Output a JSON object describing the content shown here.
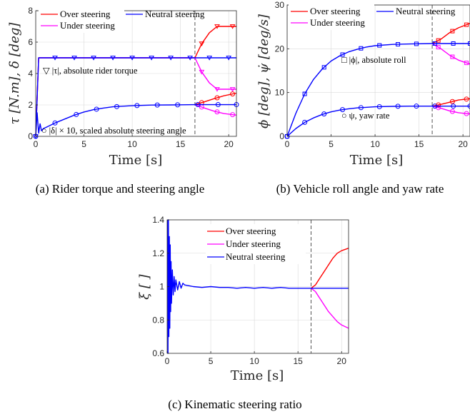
{
  "colors": {
    "over": "#ff0000",
    "under": "#ff00ff",
    "neutral": "#0000ff",
    "axis": "#262626",
    "grid": "#d9d9d9",
    "vline": "#555555"
  },
  "icons": [
    "triangle-down-marker",
    "circle-marker",
    "square-marker"
  ],
  "chart_data": [
    {
      "id": "a",
      "type": "line",
      "caption": "(a) Rider torque and steering angle",
      "xlabel": "Time [s]",
      "ylabel": "τ [N.m], δ [deg]",
      "xlim": [
        0,
        20.8
      ],
      "ylim": [
        0,
        8
      ],
      "xticks": [
        0,
        5,
        10,
        15,
        20
      ],
      "yticks": [
        0,
        2,
        4,
        6,
        8
      ],
      "grid": true,
      "legend_position": "top",
      "vline_x": 16.5,
      "annotations": [
        "▽ |τ|, absolute rider torque",
        "○ |δ| × 10, scaled absolute steering angle"
      ],
      "series": [
        {
          "name": "Over steering",
          "group": "torque",
          "x": [
            0,
            0.3,
            16.5,
            17.2,
            18.0,
            18.8,
            19.6,
            20.8
          ],
          "y": [
            0,
            5.0,
            5.0,
            5.9,
            6.6,
            7.0,
            7.0,
            7.0
          ]
        },
        {
          "name": "Under steering",
          "group": "torque",
          "x": [
            0,
            0.3,
            16.5,
            17.2,
            18.0,
            18.8,
            19.6,
            20.8
          ],
          "y": [
            0,
            5.0,
            5.0,
            4.1,
            3.4,
            3.0,
            3.0,
            3.0
          ]
        },
        {
          "name": "Neutral steering",
          "group": "torque",
          "x": [
            0,
            0.3,
            20.8
          ],
          "y": [
            0,
            5.0,
            5.0
          ]
        },
        {
          "name": "Over steering",
          "group": "angle",
          "x": [
            16.5,
            17.5,
            18.5,
            19.5,
            20.8
          ],
          "y": [
            2.02,
            2.2,
            2.4,
            2.58,
            2.75
          ]
        },
        {
          "name": "Under steering",
          "group": "angle",
          "x": [
            16.5,
            17.5,
            18.5,
            19.5,
            20.8
          ],
          "y": [
            2.02,
            1.8,
            1.6,
            1.45,
            1.35
          ]
        },
        {
          "name": "Neutral steering",
          "group": "angle",
          "x": [
            0,
            0.15,
            0.3,
            0.45,
            0.6,
            0.8,
            1,
            1.5,
            2,
            3,
            4,
            5,
            6,
            7,
            8,
            10,
            12,
            14,
            16.5,
            20.8
          ],
          "y": [
            0,
            1.5,
            0.2,
            0.8,
            0.35,
            0.5,
            0.55,
            0.7,
            0.85,
            1.1,
            1.35,
            1.55,
            1.7,
            1.8,
            1.88,
            1.95,
            1.99,
            2.0,
            2.02,
            2.02
          ]
        }
      ]
    },
    {
      "id": "b",
      "type": "line",
      "caption": "(b) Vehicle roll angle and yaw rate",
      "xlabel": "Time [s]",
      "ylabel": "ϕ [deg], ψ̇ [deg/s]",
      "xlim": [
        0,
        20.8
      ],
      "ylim": [
        0,
        30
      ],
      "xticks": [
        0,
        5,
        10,
        15,
        20
      ],
      "yticks": [
        0,
        10,
        20,
        30
      ],
      "grid": true,
      "legend_position": "top",
      "vline_x": 16.5,
      "annotations": [
        "□ |ϕ|, absolute roll",
        "○ ψ, yaw rate"
      ],
      "series": [
        {
          "name": "Over steering",
          "group": "roll",
          "x": [
            16.5,
            17.5,
            18.5,
            19.5,
            20.8
          ],
          "y": [
            21.2,
            22.2,
            23.7,
            24.8,
            25.8
          ]
        },
        {
          "name": "Under steering",
          "group": "roll",
          "x": [
            16.5,
            17.5,
            18.5,
            19.5,
            20.8
          ],
          "y": [
            21.2,
            20.0,
            18.5,
            17.4,
            16.5
          ]
        },
        {
          "name": "Neutral steering",
          "group": "roll",
          "x": [
            0,
            1,
            2,
            3,
            4,
            5,
            6,
            7,
            8,
            9,
            10,
            12,
            14,
            16.5,
            20.8
          ],
          "y": [
            0,
            5.3,
            9.7,
            13.0,
            15.4,
            17.2,
            18.4,
            19.3,
            19.9,
            20.4,
            20.7,
            21.0,
            21.1,
            21.2,
            21.2
          ]
        },
        {
          "name": "Over steering",
          "group": "yaw",
          "x": [
            16.5,
            17.5,
            18.5,
            19.5,
            20.8
          ],
          "y": [
            6.9,
            7.3,
            7.8,
            8.3,
            8.6
          ]
        },
        {
          "name": "Under steering",
          "group": "yaw",
          "x": [
            16.5,
            17.5,
            18.5,
            19.5,
            20.8
          ],
          "y": [
            6.9,
            6.4,
            5.8,
            5.4,
            5.1
          ]
        },
        {
          "name": "Neutral steering",
          "group": "yaw",
          "x": [
            0,
            1,
            2,
            3,
            4,
            5,
            6,
            7,
            8,
            10,
            12,
            14,
            16.5,
            20.8
          ],
          "y": [
            0,
            1.8,
            3.2,
            4.2,
            5.0,
            5.6,
            6.0,
            6.3,
            6.5,
            6.75,
            6.85,
            6.9,
            6.9,
            6.9
          ]
        }
      ]
    },
    {
      "id": "c",
      "type": "line",
      "caption": "(c) Kinematic steering ratio",
      "xlabel": "Time [s]",
      "ylabel": "ξ [ ]",
      "xlim": [
        0,
        20.8
      ],
      "ylim": [
        0.6,
        1.4
      ],
      "xticks": [
        0,
        5,
        10,
        15,
        20
      ],
      "yticks": [
        0.6,
        0.8,
        1,
        1.2,
        1.4
      ],
      "grid": true,
      "legend_position": "top-right",
      "vline_x": 16.5,
      "series": [
        {
          "name": "Over steering",
          "x": [
            16.5,
            17,
            17.5,
            18,
            18.5,
            19,
            19.5,
            20,
            20.8
          ],
          "y": [
            0.99,
            1.01,
            1.05,
            1.09,
            1.13,
            1.17,
            1.2,
            1.215,
            1.23
          ]
        },
        {
          "name": "Under steering",
          "x": [
            16.5,
            17,
            17.5,
            18,
            18.5,
            19,
            19.5,
            20,
            20.8
          ],
          "y": [
            0.99,
            0.97,
            0.93,
            0.89,
            0.85,
            0.82,
            0.79,
            0.77,
            0.75
          ]
        },
        {
          "name": "Neutral steering",
          "x": [
            0.05,
            0.1,
            0.15,
            0.2,
            0.25,
            0.3,
            0.35,
            0.4,
            0.45,
            0.5,
            0.6,
            0.7,
            0.8,
            0.9,
            1.0,
            1.2,
            1.4,
            1.6,
            1.8,
            2.0,
            2.5,
            3,
            4,
            5,
            6,
            7,
            8,
            9,
            10,
            11,
            12,
            13,
            14,
            15,
            16,
            17,
            18,
            19,
            20,
            20.8
          ],
          "y": [
            1.4,
            0.6,
            1.4,
            0.7,
            1.3,
            0.75,
            1.25,
            0.85,
            1.15,
            0.9,
            1.1,
            0.95,
            1.06,
            0.97,
            1.04,
            0.98,
            1.03,
            0.99,
            1.02,
            1.01,
            1.005,
            1.0,
            0.995,
            1.0,
            0.995,
            0.995,
            0.99,
            0.995,
            0.99,
            0.995,
            0.99,
            0.995,
            0.99,
            0.99,
            0.99,
            0.99,
            0.99,
            0.99,
            0.99,
            0.99
          ]
        }
      ]
    }
  ],
  "legends": {
    "a": {
      "over": "Over steering",
      "neutral": "Neutral steering",
      "under": "Under steering"
    },
    "b": {
      "over": "Over steering",
      "neutral": "Neutral steering",
      "under": "Under steering"
    },
    "c": {
      "over": "Over steering",
      "under": "Under steering",
      "neutral": "Neutral steering"
    }
  }
}
